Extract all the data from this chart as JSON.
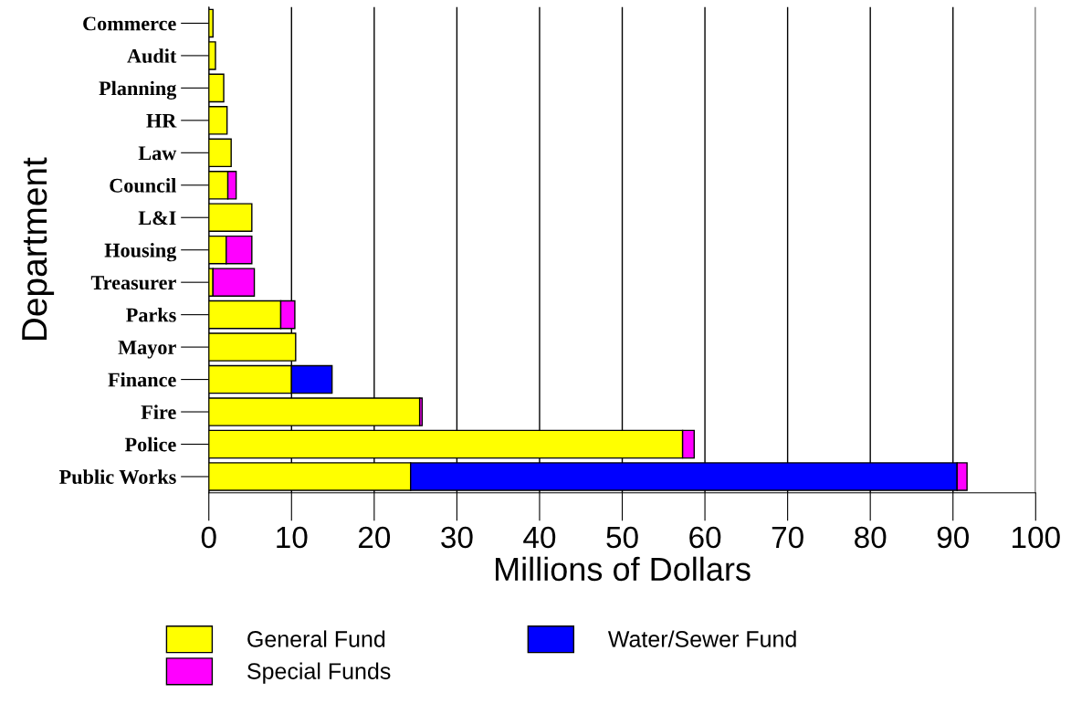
{
  "chart_data": {
    "type": "bar",
    "orientation": "horizontal",
    "stacked": true,
    "xlabel": "Millions of Dollars",
    "ylabel": "Department",
    "categories": [
      "Commerce",
      "Audit",
      "Planning",
      "HR",
      "Law",
      "Council",
      "L&I",
      "Housing",
      "Treasurer",
      "Parks",
      "Mayor",
      "Finance",
      "Fire",
      "Police",
      "Public Works"
    ],
    "series": [
      {
        "name": "General Fund",
        "color": "#ffff00",
        "values": [
          0.5,
          0.8,
          1.8,
          2.2,
          2.7,
          2.3,
          5.2,
          2.1,
          0.5,
          8.7,
          10.5,
          10.0,
          25.5,
          57.3,
          24.4
        ]
      },
      {
        "name": "Water/Sewer Fund",
        "color": "#0000ff",
        "values": [
          null,
          null,
          null,
          null,
          null,
          null,
          null,
          null,
          null,
          null,
          null,
          4.9,
          null,
          null,
          66.1
        ]
      },
      {
        "name": "Special Funds",
        "color": "#ff00ff",
        "values": [
          null,
          null,
          null,
          null,
          null,
          1.0,
          null,
          3.1,
          5.0,
          1.7,
          null,
          null,
          0.3,
          1.4,
          1.2
        ]
      }
    ],
    "xlim": [
      0,
      100
    ],
    "xticks": [
      0,
      10,
      20,
      30,
      40,
      50,
      60,
      70,
      80,
      90,
      100
    ],
    "grid": "x",
    "legend": "bottom"
  }
}
